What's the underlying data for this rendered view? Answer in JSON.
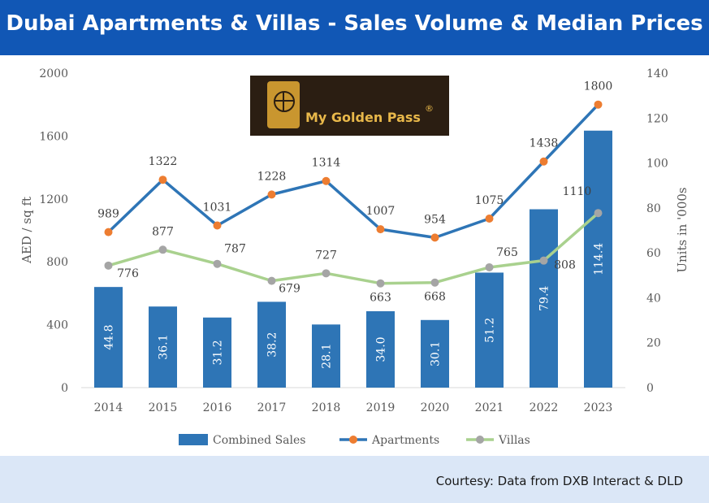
{
  "header": {
    "title": "Dubai Apartments & Villas - Sales Volume & Median Prices"
  },
  "footer": {
    "courtesy": "Courtesy: Data from DXB Interact & DLD"
  },
  "logo": {
    "text": "My Golden Pass",
    "mark": "®",
    "icon": "passport-globe-icon"
  },
  "colors": {
    "header_bg": "#1157b5",
    "bar": "#2e75b6",
    "apartments": "#2e75b6",
    "apartments_marker": "#ed7d31",
    "villas": "#a9d18e",
    "villas_marker": "#a5a5a5",
    "footer_bg": "#dbe7f7"
  },
  "chart_data": {
    "type": "bar",
    "categories": [
      "2014",
      "2015",
      "2016",
      "2017",
      "2018",
      "2019",
      "2020",
      "2021",
      "2022",
      "2023"
    ],
    "series": [
      {
        "name": "Combined Sales",
        "type": "bar",
        "axis": "right",
        "values": [
          44.8,
          36.1,
          31.2,
          38.2,
          28.1,
          34.0,
          30.1,
          51.2,
          79.4,
          114.4
        ],
        "labels": [
          "44.8",
          "36.1",
          "31.2",
          "38.2",
          "28.1",
          "34.0",
          "30.1",
          "51.2",
          "79.4",
          "114.4"
        ]
      },
      {
        "name": "Apartments",
        "type": "line",
        "axis": "left",
        "values": [
          989,
          1322,
          1031,
          1228,
          1314,
          1007,
          954,
          1075,
          1438,
          1800
        ]
      },
      {
        "name": "Villas",
        "type": "line",
        "axis": "left",
        "values": [
          776,
          877,
          787,
          679,
          727,
          663,
          668,
          765,
          808,
          1110
        ]
      }
    ],
    "ylabel": "AED / sq ft",
    "ylim": [
      0,
      2000
    ],
    "yticks": [
      "0",
      "400",
      "800",
      "1200",
      "1600",
      "2000"
    ],
    "y2label": "Units in '000s",
    "y2lim": [
      0,
      140
    ],
    "y2ticks": [
      "0",
      "20",
      "40",
      "60",
      "80",
      "100",
      "120",
      "140"
    ],
    "legend": "bottom",
    "grid": false
  }
}
